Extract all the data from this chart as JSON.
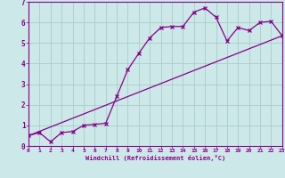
{
  "line1_x": [
    0,
    1,
    2,
    3,
    4,
    5,
    6,
    7,
    8,
    9,
    10,
    11,
    12,
    13,
    14,
    15,
    16,
    17,
    18,
    19,
    20,
    21,
    22,
    23
  ],
  "line1_y": [
    0.5,
    0.65,
    0.2,
    0.65,
    0.7,
    1.0,
    1.05,
    1.1,
    2.4,
    3.7,
    4.5,
    5.25,
    5.75,
    5.8,
    5.8,
    6.5,
    6.7,
    6.25,
    5.1,
    5.75,
    5.6,
    6.0,
    6.05,
    5.35
  ],
  "line2_x": [
    0,
    23
  ],
  "line2_y": [
    0.5,
    5.35
  ],
  "line_color": "#880088",
  "bg_color": "#cce8e8",
  "grid_color": "#aacccc",
  "xlabel": "Windchill (Refroidissement éolien,°C)",
  "xlim": [
    0,
    23
  ],
  "ylim": [
    0,
    7
  ],
  "xticks": [
    0,
    1,
    2,
    3,
    4,
    5,
    6,
    7,
    8,
    9,
    10,
    11,
    12,
    13,
    14,
    15,
    16,
    17,
    18,
    19,
    20,
    21,
    22,
    23
  ],
  "yticks": [
    0,
    1,
    2,
    3,
    4,
    5,
    6,
    7
  ]
}
